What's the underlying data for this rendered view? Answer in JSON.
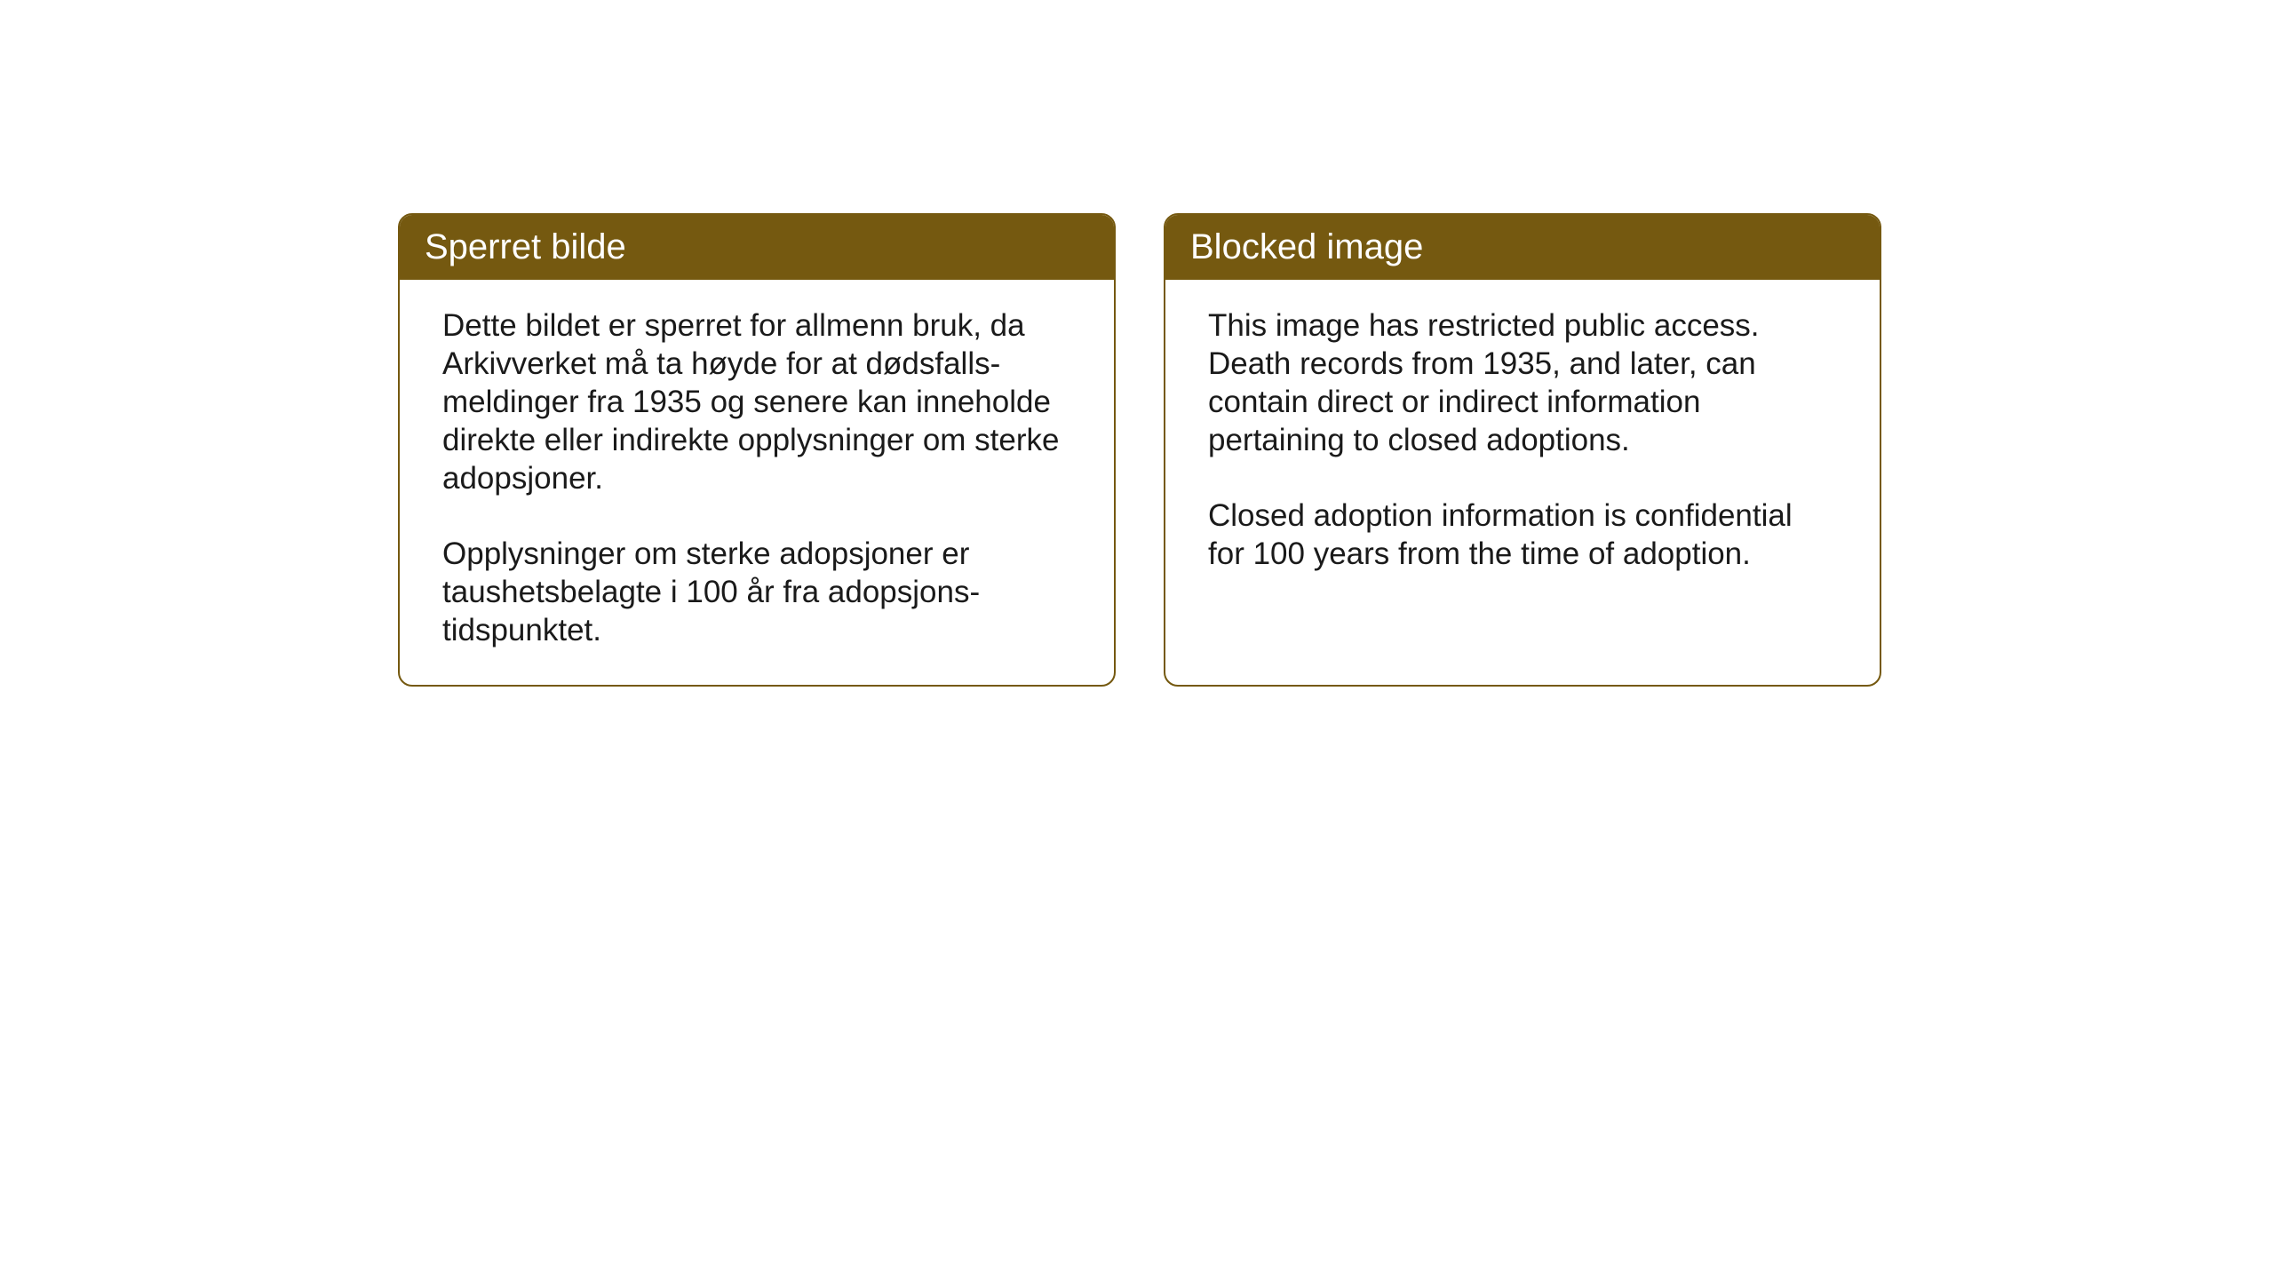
{
  "layout": {
    "background_color": "#ffffff",
    "card_border_color": "#755910",
    "card_header_bg": "#755910",
    "card_header_text_color": "#ffffff",
    "card_body_text_color": "#1a1a1a",
    "card_border_radius": 16,
    "card_border_width": 2,
    "header_fontsize": 40,
    "body_fontsize": 35
  },
  "cards": {
    "norwegian": {
      "title": "Sperret bilde",
      "paragraph1": "Dette bildet er sperret for allmenn bruk, da Arkivverket må ta høyde for at dødsfalls-meldinger fra 1935 og senere kan inneholde direkte eller indirekte opplysninger om sterke adopsjoner.",
      "paragraph2": "Opplysninger om sterke adopsjoner er taushetsbelagte i 100 år fra adopsjons-tidspunktet."
    },
    "english": {
      "title": "Blocked image",
      "paragraph1": "This image has restricted public access. Death records from 1935, and later, can contain direct or indirect information pertaining to closed adoptions.",
      "paragraph2": "Closed adoption information is confidential for 100 years from the time of adoption."
    }
  }
}
